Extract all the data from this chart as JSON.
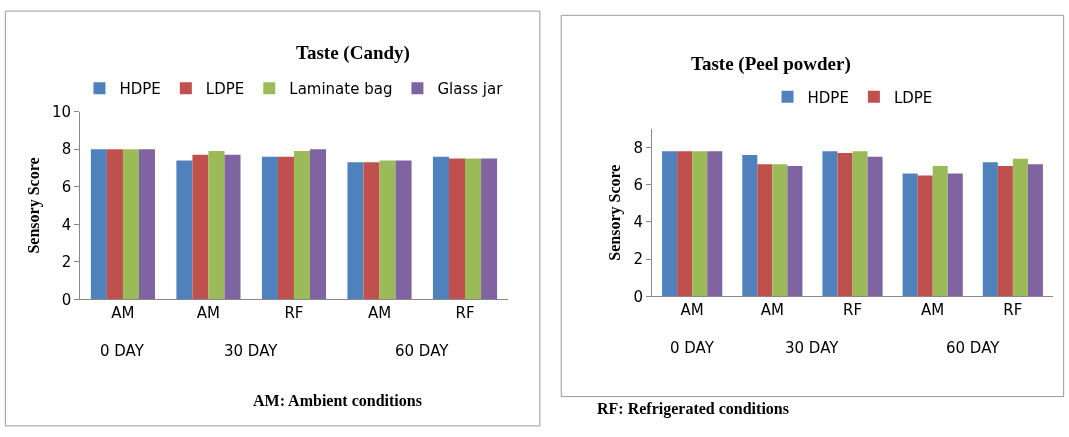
{
  "chart_data": [
    {
      "type": "bar",
      "title": "Taste (Candy)",
      "ylabel": "Sensory Score",
      "categories": [
        "AM",
        "AM",
        "RF",
        "AM",
        "RF"
      ],
      "series": [
        {
          "name": "HDPE",
          "color": "#4f81bd",
          "values": [
            8.0,
            7.4,
            7.6,
            7.3,
            7.6
          ]
        },
        {
          "name": "LDPE",
          "color": "#c0504d",
          "values": [
            8.0,
            7.7,
            7.6,
            7.3,
            7.5
          ]
        },
        {
          "name": "Laminate bag",
          "color": "#9bbb59",
          "values": [
            8.0,
            7.9,
            7.9,
            7.4,
            7.5
          ]
        },
        {
          "name": "Glass jar",
          "color": "#8064a2",
          "values": [
            8.0,
            7.7,
            8.0,
            7.4,
            7.5
          ]
        }
      ],
      "ylim": [
        0,
        10
      ],
      "yticks": [
        0,
        2,
        4,
        6,
        8,
        10
      ],
      "legend": "top",
      "annotations": [
        "0 DAY",
        "30 DAY",
        "60 DAY",
        "AM: Ambient conditions"
      ]
    },
    {
      "type": "bar",
      "title": "Taste (Peel powder)",
      "ylabel": "Sensory Score",
      "categories": [
        "AM",
        "AM",
        "RF",
        "AM",
        "RF"
      ],
      "series": [
        {
          "name": "HDPE",
          "color": "#4f81bd",
          "values": [
            7.8,
            7.6,
            7.8,
            6.6,
            7.2
          ]
        },
        {
          "name": "LDPE",
          "color": "#c0504d",
          "values": [
            7.8,
            7.1,
            7.7,
            6.5,
            7.0
          ]
        },
        {
          "color": "#9bbb59",
          "values": [
            7.8,
            7.1,
            7.8,
            7.0,
            7.4
          ]
        },
        {
          "color": "#8064a2",
          "values": [
            7.8,
            7.0,
            7.5,
            6.6,
            7.1
          ]
        }
      ],
      "ylim": [
        0,
        9
      ],
      "yticks": [
        0,
        2,
        4,
        6,
        8
      ],
      "legend": "top",
      "annotations": [
        "0 DAY",
        "30 DAY",
        "60 DAY",
        "RF: Refrigerated conditions"
      ]
    }
  ]
}
